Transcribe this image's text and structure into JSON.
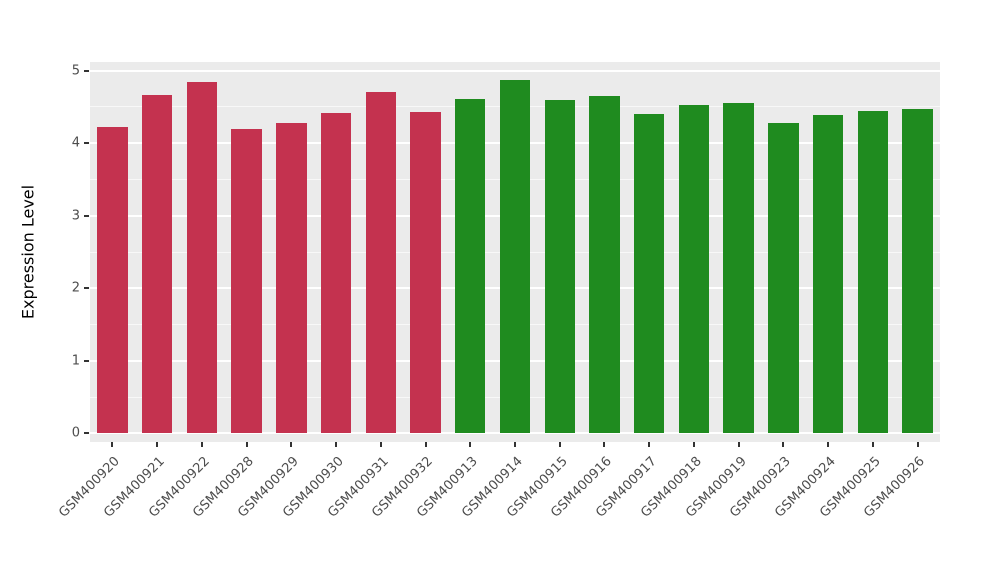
{
  "chart_data": {
    "type": "bar",
    "title": "",
    "xlabel": "",
    "ylabel": "Expression Level",
    "ylim": [
      0,
      5
    ],
    "yticks": [
      0,
      1,
      2,
      3,
      4,
      5
    ],
    "minor_yticks": [
      0.5,
      1.5,
      2.5,
      3.5,
      4.5
    ],
    "grid": "on",
    "legend": "none",
    "panel_background": "#EBEBEB",
    "axis_text_color": "#4D4D4D",
    "categories": [
      "GSM400920",
      "GSM400921",
      "GSM400922",
      "GSM400928",
      "GSM400929",
      "GSM400930",
      "GSM400931",
      "GSM400932",
      "GSM400913",
      "GSM400914",
      "GSM400915",
      "GSM400916",
      "GSM400917",
      "GSM400918",
      "GSM400919",
      "GSM400923",
      "GSM400924",
      "GSM400925",
      "GSM400926"
    ],
    "values": [
      4.22,
      4.66,
      4.84,
      4.2,
      4.28,
      4.42,
      4.71,
      4.43,
      4.61,
      4.87,
      4.59,
      4.65,
      4.4,
      4.53,
      4.55,
      4.28,
      4.39,
      4.44,
      4.47
    ],
    "groups": [
      "red",
      "red",
      "red",
      "red",
      "red",
      "red",
      "red",
      "red",
      "green",
      "green",
      "green",
      "green",
      "green",
      "green",
      "green",
      "green",
      "green",
      "green",
      "green"
    ],
    "group_colors": {
      "red": "#C4324F",
      "green": "#1F8B1F"
    }
  }
}
